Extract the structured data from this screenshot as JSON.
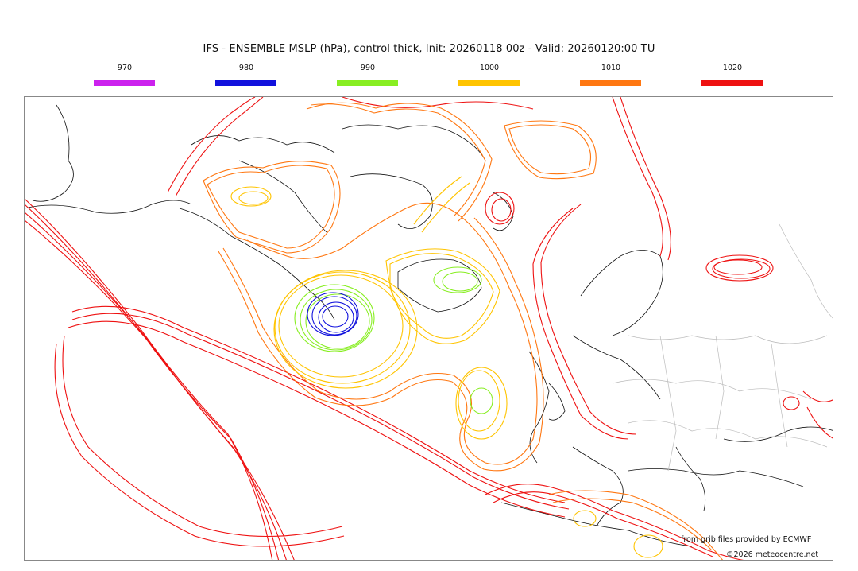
{
  "title": "IFS - ENSEMBLE MSLP (hPa), control thick, Init: 20260118 00z - Valid: 20260120:00 TU",
  "legend": [
    {
      "label": "970",
      "color": "#cc22ee"
    },
    {
      "label": "980",
      "color": "#1111dd"
    },
    {
      "label": "990",
      "color": "#88ee22"
    },
    {
      "label": "1000",
      "color": "#ffc400"
    },
    {
      "label": "1010",
      "color": "#ff7711"
    },
    {
      "label": "1020",
      "color": "#ee1111"
    }
  ],
  "credits": {
    "source": "from grib files provided by ECMWF",
    "copyright": "©2026 meteocentre.net"
  }
}
